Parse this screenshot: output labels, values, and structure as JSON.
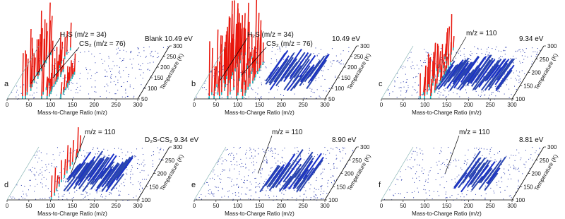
{
  "xlabel": "Mass-to-Charge Ratio (m/z)",
  "tlabel": "Temperature (K)",
  "panels": [
    {
      "letter": "a",
      "condition": "Blank 10.49 eV",
      "annotations": [
        "H₂S (m/z = 34)",
        "CS₂ (m/z = 76)"
      ],
      "xticks": [
        0,
        50,
        100,
        150,
        200,
        250,
        300
      ],
      "tlim": [
        50,
        300
      ],
      "tticks": [
        50,
        100,
        150,
        200,
        250,
        300
      ]
    },
    {
      "letter": "b",
      "condition": "10.49 eV",
      "annotations": [
        "H₂S (m/z = 34)",
        "CS₂ (m/z = 76)"
      ],
      "xticks": [
        0,
        50,
        100,
        150,
        200,
        250,
        300
      ],
      "tlim": [
        50,
        300
      ],
      "tticks": [
        50,
        100,
        150,
        200,
        250,
        300
      ]
    },
    {
      "letter": "c",
      "condition": "9.34 eV",
      "annotations": [
        "m/z = 110"
      ],
      "xticks": [
        0,
        50,
        100,
        150,
        200,
        250,
        300
      ],
      "tlim": [
        100,
        300
      ],
      "tticks": [
        100,
        150,
        200,
        250,
        300
      ]
    },
    {
      "letter": "d",
      "condition": "D₂S-CS₂ 9.34 eV",
      "annotations": [
        "m/z = 110"
      ],
      "xticks": [
        0,
        50,
        100,
        150,
        200,
        250,
        300
      ],
      "tlim": [
        100,
        300
      ],
      "tticks": [
        100,
        150,
        200,
        250,
        300
      ]
    },
    {
      "letter": "e",
      "condition": "8.90 eV",
      "annotations": [
        "m/z = 110"
      ],
      "xticks": [
        0,
        50,
        100,
        150,
        200,
        250,
        300
      ],
      "tlim": [
        100,
        300
      ],
      "tticks": [
        100,
        150,
        200,
        250,
        300
      ]
    },
    {
      "letter": "f",
      "condition": "8.81 eV",
      "annotations": [
        "m/z = 110"
      ],
      "xticks": [
        0,
        50,
        100,
        150,
        200,
        250,
        300
      ],
      "tlim": [
        100,
        300
      ],
      "tticks": [
        100,
        150,
        200,
        250,
        300
      ]
    }
  ]
}
